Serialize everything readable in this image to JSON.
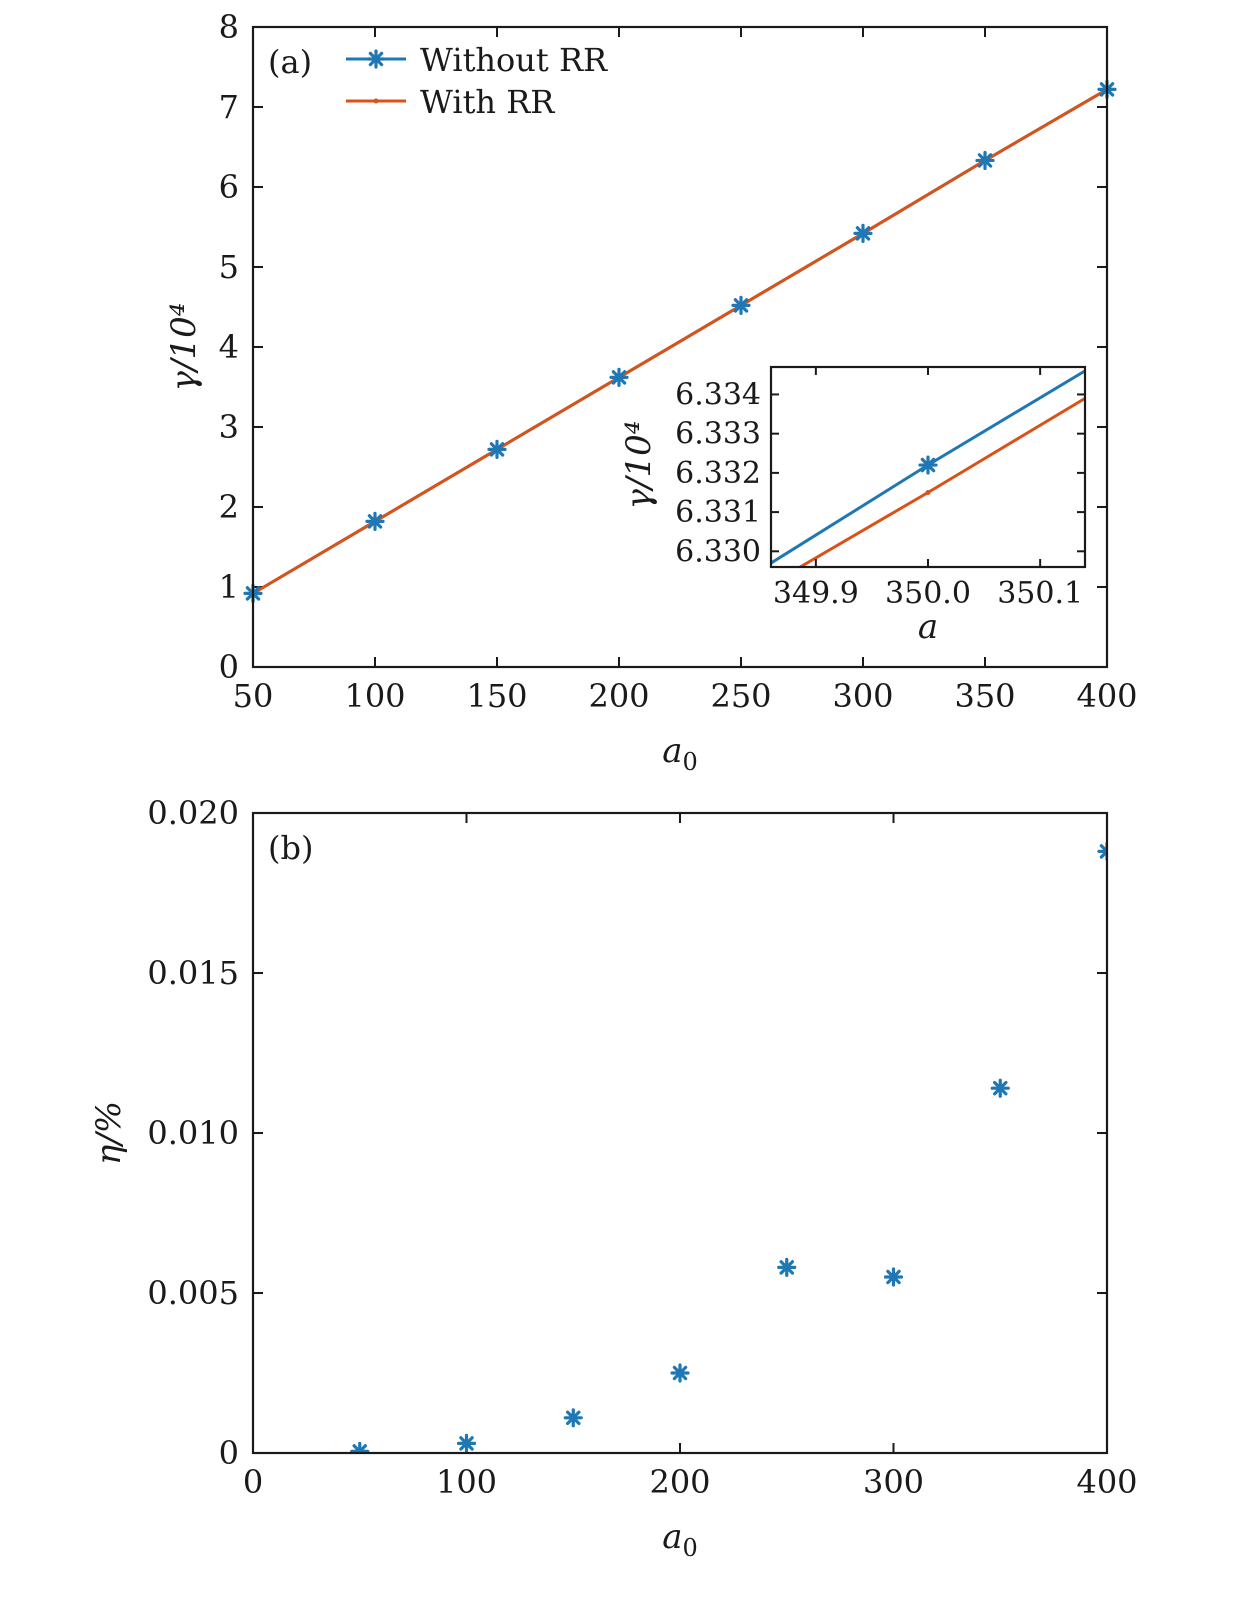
{
  "chart_data": [
    {
      "panel_label": "(a)",
      "type": "line",
      "xlabel": "a0",
      "ylabel": "γ/10⁴",
      "xlim": [
        50,
        400
      ],
      "ylim": [
        0,
        8
      ],
      "xticks": [
        50,
        100,
        150,
        200,
        250,
        300,
        350,
        400
      ],
      "yticks": [
        0,
        1,
        2,
        3,
        4,
        5,
        6,
        7,
        8
      ],
      "legend_position": "top-left",
      "series": [
        {
          "name": "Without RR",
          "color": "#1f77b4",
          "marker": "asterisk",
          "x": [
            50,
            100,
            150,
            200,
            250,
            300,
            350,
            400
          ],
          "y": [
            0.92,
            1.82,
            2.72,
            3.62,
            4.52,
            5.42,
            6.332,
            7.22
          ]
        },
        {
          "name": "With RR",
          "color": "#d95319",
          "marker": "dot",
          "x": [
            50,
            100,
            150,
            200,
            250,
            300,
            350,
            400
          ],
          "y": [
            0.92,
            1.82,
            2.72,
            3.62,
            4.52,
            5.42,
            6.331,
            7.22
          ]
        }
      ],
      "inset": {
        "xlabel": "a",
        "ylabel": "γ/10⁴",
        "xlim": [
          349.86,
          350.14
        ],
        "ylim": [
          6.3296,
          6.3347
        ],
        "xticks": [
          "349.9",
          "350.0",
          "350.1"
        ],
        "yticks": [
          "6.330",
          "6.331",
          "6.332",
          "6.333",
          "6.334"
        ],
        "series": [
          {
            "name": "Without RR",
            "x": [
              349.86,
              350.0,
              350.14
            ],
            "y": [
              6.3297,
              6.3322,
              6.3346
            ]
          },
          {
            "name": "With RR",
            "x": [
              349.886,
              350.0,
              350.14
            ],
            "y": [
              6.3296,
              6.3315,
              6.3339
            ]
          }
        ]
      }
    },
    {
      "panel_label": "(b)",
      "type": "scatter",
      "xlabel": "a0",
      "ylabel": "η/%",
      "xlim": [
        0,
        400
      ],
      "ylim": [
        0,
        0.02
      ],
      "xticks": [
        "0",
        "100",
        "200",
        "300",
        "400"
      ],
      "yticks": [
        "0",
        "0.005",
        "0.010",
        "0.015",
        "0.020"
      ],
      "series": [
        {
          "color": "#1f77b4",
          "marker": "asterisk",
          "x": [
            50,
            100,
            150,
            200,
            250,
            300,
            350,
            400
          ],
          "y": [
            5e-05,
            0.0003,
            0.0011,
            0.0025,
            0.0058,
            0.0055,
            0.0114,
            0.0188
          ]
        }
      ]
    }
  ]
}
